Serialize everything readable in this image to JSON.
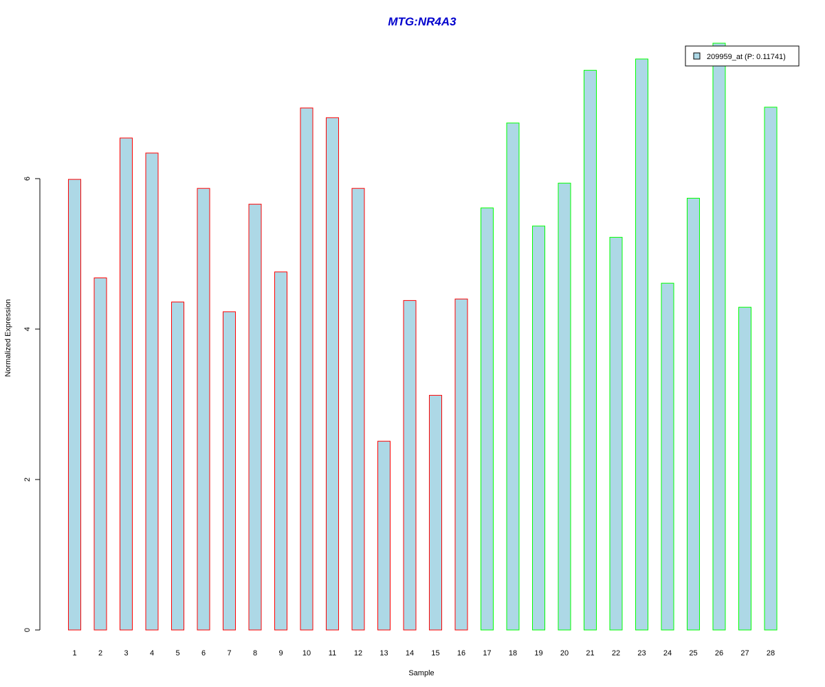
{
  "chart_data": {
    "type": "bar",
    "title": "MTG:NR4A3",
    "xlabel": "Sample",
    "ylabel": "Normalized Expression",
    "ylim": [
      0,
      7.8
    ],
    "yticks": [
      0,
      2,
      4,
      6
    ],
    "categories": [
      "1",
      "2",
      "3",
      "4",
      "5",
      "6",
      "7",
      "8",
      "9",
      "10",
      "11",
      "12",
      "13",
      "14",
      "15",
      "16",
      "17",
      "18",
      "19",
      "20",
      "21",
      "22",
      "23",
      "24",
      "25",
      "26",
      "27",
      "28"
    ],
    "values": [
      5.99,
      4.68,
      6.54,
      6.34,
      4.36,
      5.87,
      4.23,
      5.66,
      4.76,
      6.94,
      6.81,
      5.87,
      2.51,
      4.38,
      3.12,
      4.4,
      5.61,
      6.74,
      5.37,
      5.94,
      7.44,
      5.22,
      7.59,
      4.61,
      5.74,
      7.8,
      4.29,
      6.95
    ],
    "groups": [
      "red",
      "red",
      "red",
      "red",
      "red",
      "red",
      "red",
      "red",
      "red",
      "red",
      "red",
      "red",
      "red",
      "red",
      "red",
      "red",
      "green",
      "green",
      "green",
      "green",
      "green",
      "green",
      "green",
      "green",
      "green",
      "green",
      "green",
      "green"
    ],
    "colors": {
      "fill": "#add8e6",
      "red": "#ff0000",
      "green": "#00ff00",
      "title": "#0000cd",
      "axis": "#000000"
    },
    "legend": {
      "position": "top-right",
      "entries": [
        {
          "label": "209959_at (P: 0.11741)",
          "fill": "#add8e6"
        }
      ]
    },
    "grid": false
  }
}
